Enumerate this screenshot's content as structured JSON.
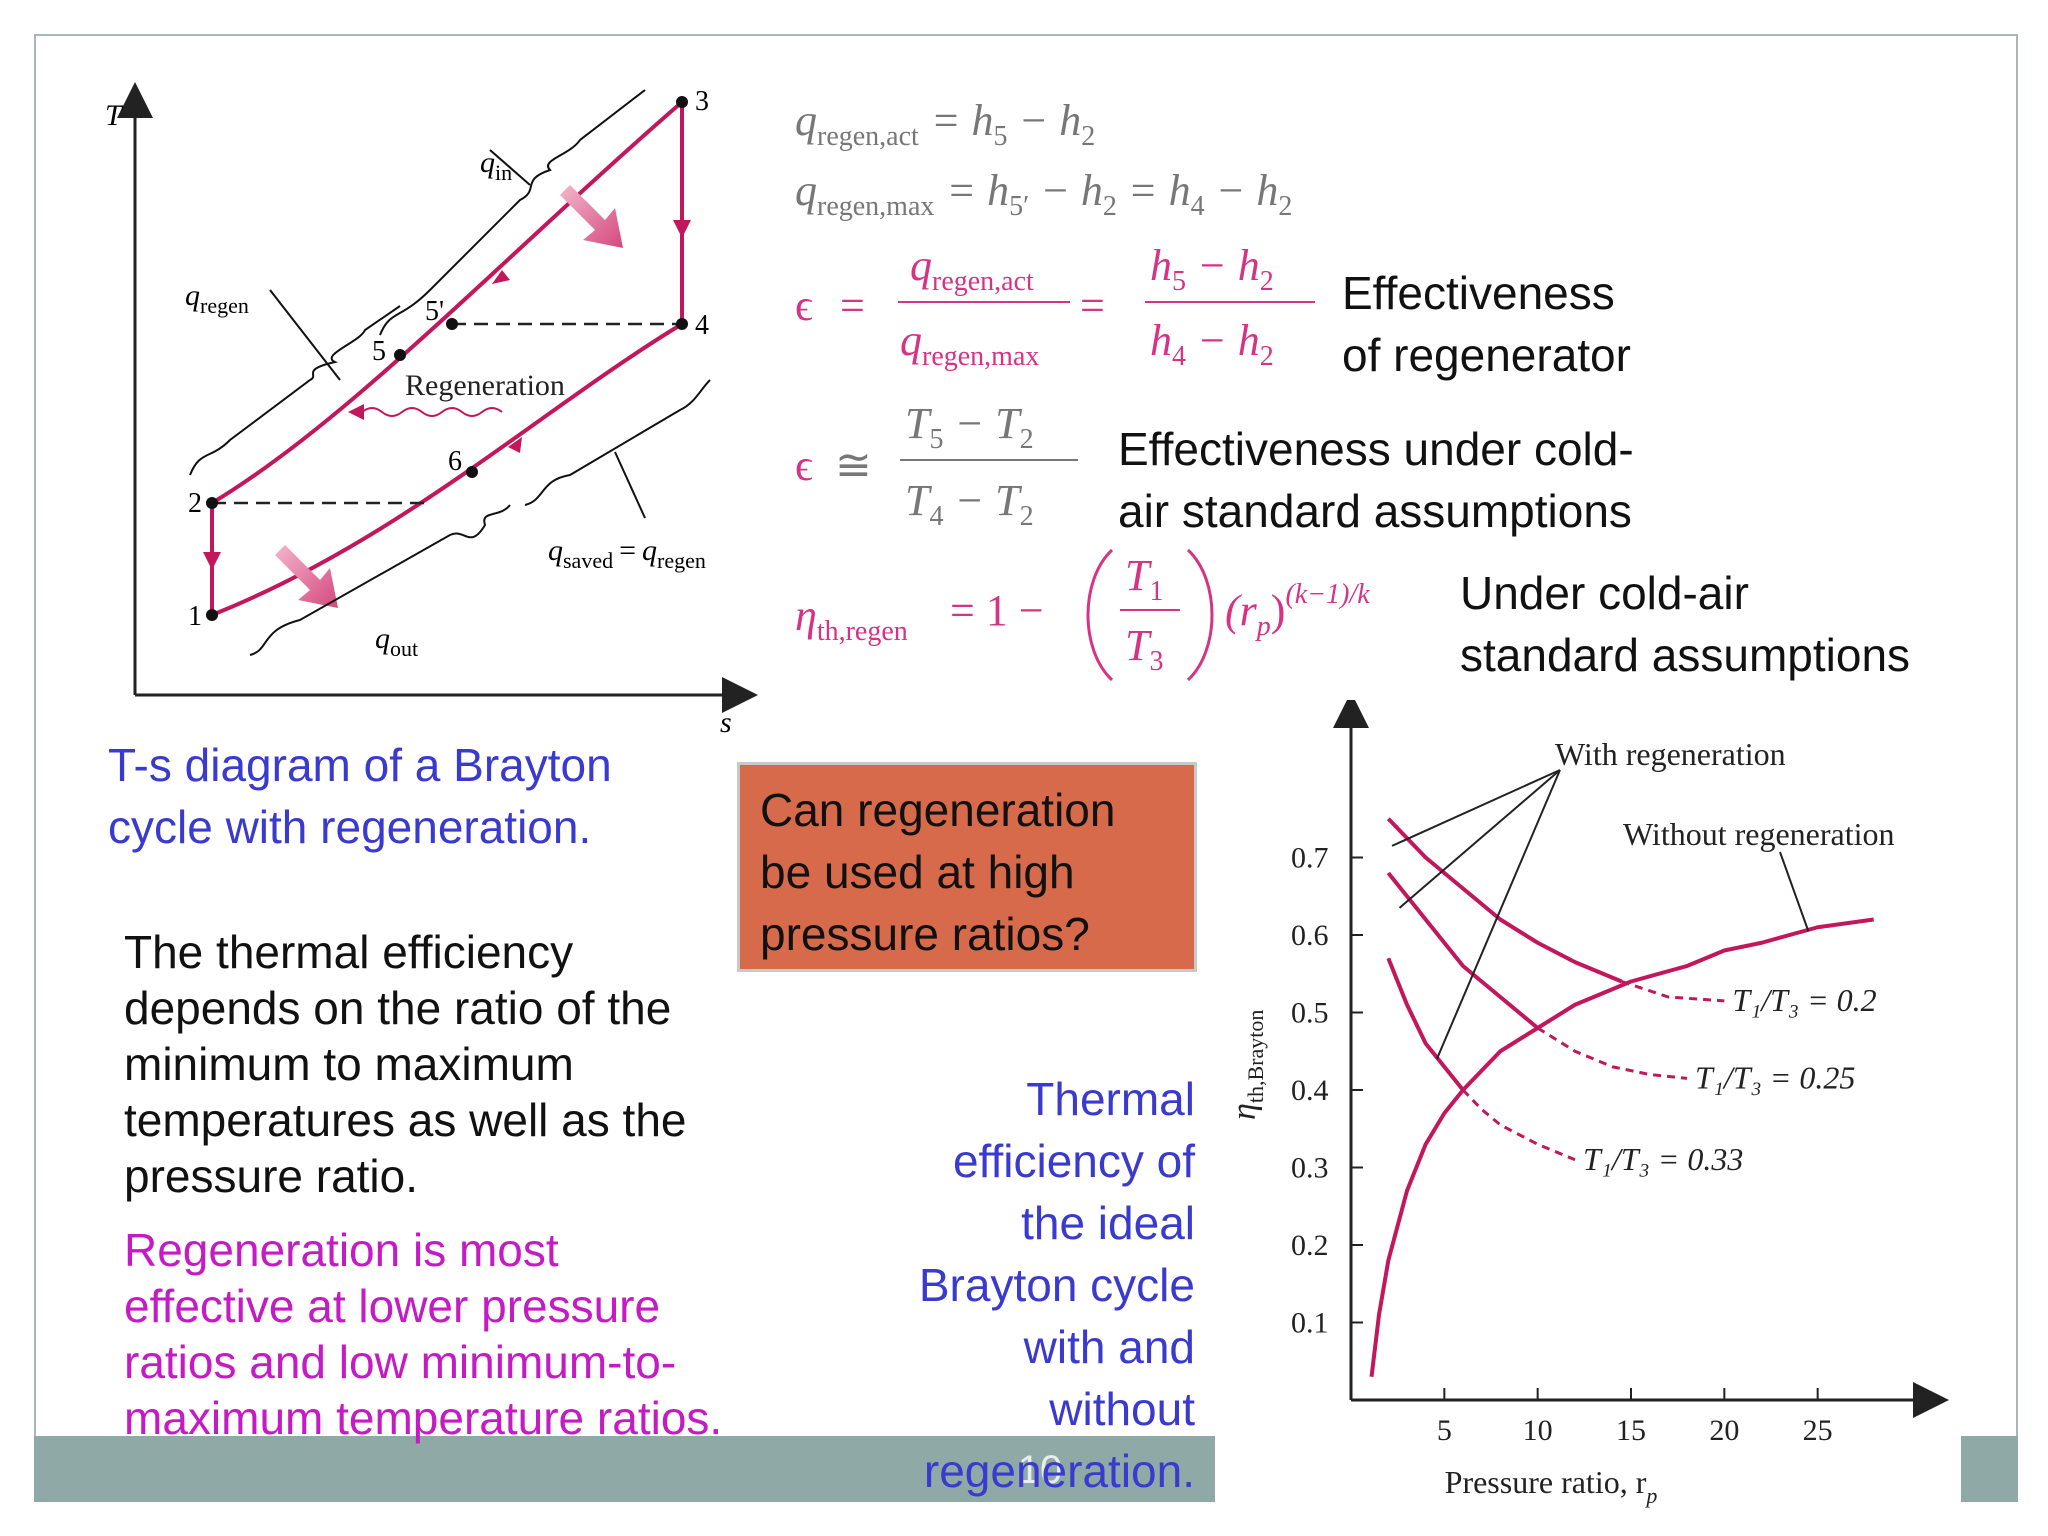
{
  "ts_diagram": {
    "axis_T": "T",
    "axis_s": "s",
    "points": [
      "1",
      "2",
      "3",
      "4",
      "5",
      "5'",
      "6"
    ],
    "q_in": "q",
    "q_in_sub": "in",
    "q_out": "q",
    "q_out_sub": "out",
    "q_regen": "q",
    "q_regen_sub": "regen",
    "q_saved": "q",
    "q_saved_sub": "saved",
    "q_saved_eq": "=",
    "q_saved_rhs": "q",
    "q_saved_rhs_sub": "regen",
    "regeneration_label": "Regeneration",
    "caption_line1": "T-s diagram of a Brayton",
    "caption_line2": "cycle with regeneration."
  },
  "equations": {
    "eq1_lhs": "q",
    "eq1_lhs_sub": "regen,act",
    "eq1_rhs": "= h",
    "eq1_rhs_sub1": "5",
    "eq1_rhs_minus": " − h",
    "eq1_rhs_sub2": "2",
    "eq2_lhs": "q",
    "eq2_lhs_sub": "regen,max",
    "eq2_rhs_a": "= h",
    "eq2_rhs_a_sub": "5′",
    "eq2_rhs_b": " − h",
    "eq2_rhs_b_sub": "2",
    "eq2_rhs_c": " = h",
    "eq2_rhs_c_sub": "4",
    "eq2_rhs_d": " − h",
    "eq2_rhs_d_sub": "2",
    "effectiveness_symbol": "ϵ",
    "frac1_num": "q",
    "frac1_num_sub": "regen,act",
    "frac1_den": "q",
    "frac1_den_sub": "regen,max",
    "frac2_num": "h",
    "frac2_num_sub1": "5",
    "frac2_num_mid": " − h",
    "frac2_num_sub2": "2",
    "frac2_den": "h",
    "frac2_den_sub1": "4",
    "frac2_den_mid": " − h",
    "frac2_den_sub2": "2",
    "approx_symbol": "≅",
    "frac3_num": "T",
    "frac3_num_sub1": "5",
    "frac3_num_mid": " − T",
    "frac3_num_sub2": "2",
    "frac3_den": "T",
    "frac3_den_sub1": "4",
    "frac3_den_mid": " − T",
    "frac3_den_sub2": "2",
    "eta_symbol": "η",
    "eta_sub": "th,regen",
    "eta_rhs": "= 1 −",
    "eta_frac_num": "T",
    "eta_frac_num_sub": "1",
    "eta_frac_den": "T",
    "eta_frac_den_sub": "3",
    "eta_rp": "(r",
    "eta_rp_sub": "p",
    "eta_rp_close": ")",
    "eta_exp": "(k−1)/k"
  },
  "labels": {
    "effectiveness_line1": "Effectiveness",
    "effectiveness_line2": "of regenerator",
    "cold_air_line1": "Effectiveness under cold-",
    "cold_air_line2": "air standard assumptions",
    "under_cold_line1": "Under cold-air",
    "under_cold_line2": "standard assumptions"
  },
  "question_box": {
    "line1": "Can regeneration",
    "line2": "be used at high",
    "line3": "pressure ratios?"
  },
  "body_text": {
    "line1": "The thermal efficiency",
    "line2": "depends on the ratio of the",
    "line3": "minimum to maximum",
    "line4": "temperatures as well as the",
    "line5": "pressure ratio."
  },
  "highlight_text": {
    "line1": "Regeneration is most",
    "line2": "effective at lower pressure",
    "line3": "ratios and low minimum-to-",
    "line4": "maximum temperature ratios."
  },
  "thermal_caption": {
    "line1": "Thermal",
    "line2": "efficiency of",
    "line3": "the ideal",
    "line4": "Brayton cycle",
    "line5": "with and",
    "line6": "without",
    "line7": "regeneration."
  },
  "footer": {
    "page_number": "10"
  },
  "colors": {
    "magenta_curve": "#c2185b",
    "blue_caption": "#3a3acf",
    "magenta_text": "#c41bc4",
    "box_fill": "#d66a4b",
    "footer_bar": "#8fa9a6"
  },
  "chart_data": {
    "type": "line",
    "xlabel": "Pressure ratio, r",
    "xlabel_sub": "p",
    "ylabel": "η",
    "ylabel_sub": "th,Brayton",
    "xlim": [
      0,
      30
    ],
    "ylim": [
      0,
      0.8
    ],
    "xticks": [
      5,
      10,
      15,
      20,
      25
    ],
    "yticks": [
      0.1,
      0.2,
      0.3,
      0.4,
      0.5,
      0.6,
      0.7
    ],
    "annotation_with": "With regeneration",
    "annotation_without": "Without regeneration",
    "series": [
      {
        "name": "Without regeneration",
        "x": [
          1.1,
          1.5,
          2,
          3,
          4,
          5,
          6,
          8,
          10,
          12,
          15,
          18,
          20,
          22,
          25,
          28
        ],
        "y": [
          0.03,
          0.11,
          0.18,
          0.27,
          0.33,
          0.37,
          0.4,
          0.45,
          0.48,
          0.51,
          0.54,
          0.56,
          0.58,
          0.59,
          0.61,
          0.62
        ]
      },
      {
        "name": "T1/T3 = 0.2",
        "label": "T₁/T₃ = 0.2",
        "x": [
          2,
          4,
          6,
          8,
          10,
          12,
          14.5,
          17,
          20
        ],
        "y": [
          0.75,
          0.7,
          0.66,
          0.62,
          0.59,
          0.565,
          0.54,
          0.52,
          0.515
        ],
        "dashed_from_x": 14.5
      },
      {
        "name": "T1/T3 = 0.25",
        "label": "T₁/T₃ = 0.25",
        "x": [
          2,
          4,
          6,
          8,
          10,
          12,
          14,
          16,
          18
        ],
        "y": [
          0.68,
          0.62,
          0.56,
          0.52,
          0.48,
          0.45,
          0.43,
          0.42,
          0.415
        ],
        "dashed_from_x": 10
      },
      {
        "name": "T1/T3 = 0.33",
        "label": "T₁/T₃ = 0.33",
        "x": [
          2,
          3,
          4,
          5,
          6,
          7,
          8,
          10,
          12
        ],
        "y": [
          0.57,
          0.51,
          0.46,
          0.43,
          0.4,
          0.375,
          0.355,
          0.33,
          0.31
        ],
        "dashed_from_x": 6
      }
    ]
  }
}
